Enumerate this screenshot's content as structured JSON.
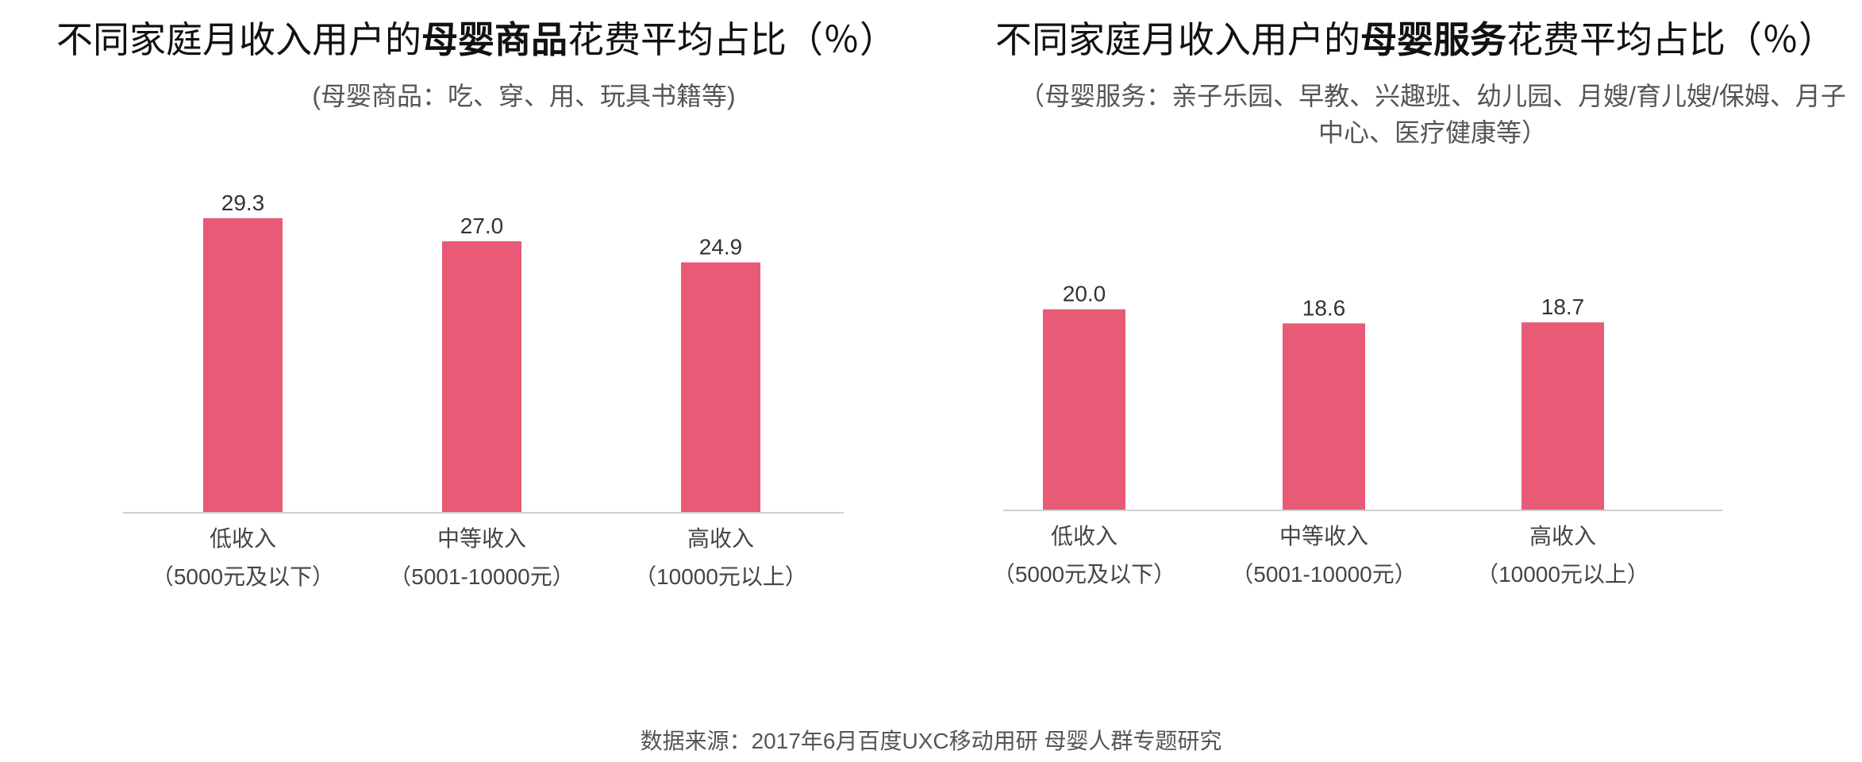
{
  "charts": [
    {
      "title_pre": "不同家庭月收入用户的",
      "title_bold": "母婴商品",
      "title_post": "花费平均占比（％）",
      "subtitle": "(母婴商品：吃、穿、用、玩具书籍等)"
    },
    {
      "title_pre": "不同家庭月收入用户的",
      "title_bold": "母婴服务",
      "title_post": "花费平均占比（％）",
      "subtitle": "（母婴服务：亲子乐园、早教、兴趣班、幼儿园、月嫂/育儿嫂/保姆、月子中心、医疗健康等）"
    }
  ],
  "source": "数据来源：2017年6月百度UXC移动用研 母婴人群专题研究",
  "chart_data": [
    {
      "type": "bar",
      "title": "不同家庭月收入用户的母婴商品花费平均占比（％）",
      "subtitle": "(母婴商品：吃、穿、用、玩具书籍等)",
      "categories": [
        [
          "低收入",
          "（5000元及以下）"
        ],
        [
          "中等收入",
          "（5001-10000元）"
        ],
        [
          "高收入",
          "（10000元以上）"
        ]
      ],
      "values": [
        29.3,
        27.0,
        24.9
      ],
      "value_labels": [
        "29.3",
        "27.0",
        "24.9"
      ],
      "ylim": [
        0,
        30
      ],
      "grid": false,
      "bar_color": "#e85a75"
    },
    {
      "type": "bar",
      "title": "不同家庭月收入用户的母婴服务花费平均占比（％）",
      "subtitle": "（母婴服务：亲子乐园、早教、兴趣班、幼儿园、月嫂/育儿嫂/保姆、月子中心、医疗健康等）",
      "categories": [
        [
          "低收入",
          "（5000元及以下）"
        ],
        [
          "中等收入",
          "（5001-10000元）"
        ],
        [
          "高收入",
          "（10000元以上）"
        ]
      ],
      "values": [
        20.0,
        18.6,
        18.7
      ],
      "value_labels": [
        "20.0",
        "18.6",
        "18.7"
      ],
      "ylim": [
        0,
        30
      ],
      "grid": false,
      "bar_color": "#e85a75"
    }
  ]
}
